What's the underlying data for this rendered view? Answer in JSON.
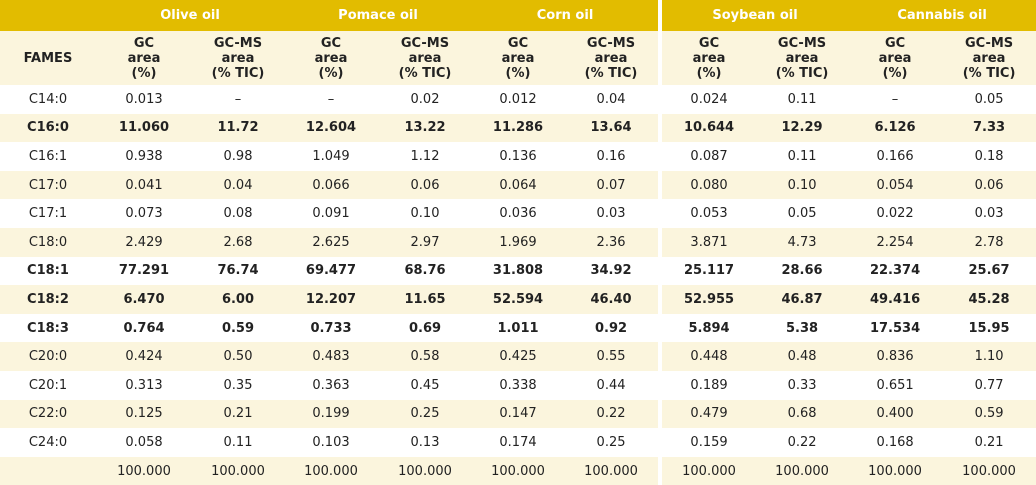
{
  "header": {
    "fames_label": "FAMES",
    "groups": [
      "Olive oil",
      "Pomace oil",
      "Corn oil",
      "Soybean oil",
      "Cannabis oil"
    ],
    "gc_label": [
      "GC",
      "area",
      "(%)"
    ],
    "gcms_label": [
      "GC-MS",
      "area",
      "(% TIC)"
    ]
  },
  "rows": [
    {
      "name": "C14:0",
      "values": [
        "0.013",
        "–",
        "–",
        "0.02",
        "0.012",
        "0.04",
        "0.024",
        "0.11",
        "–",
        "0.05"
      ]
    },
    {
      "name": "C16:0",
      "values": [
        "11.060",
        "11.72",
        "12.604",
        "13.22",
        "11.286",
        "13.64",
        "10.644",
        "12.29",
        "6.126",
        "7.33"
      ]
    },
    {
      "name": "C16:1",
      "values": [
        "0.938",
        "0.98",
        "1.049",
        "1.12",
        "0.136",
        "0.16",
        "0.087",
        "0.11",
        "0.166",
        "0.18"
      ]
    },
    {
      "name": "C17:0",
      "values": [
        "0.041",
        "0.04",
        "0.066",
        "0.06",
        "0.064",
        "0.07",
        "0.080",
        "0.10",
        "0.054",
        "0.06"
      ]
    },
    {
      "name": "C17:1",
      "values": [
        "0.073",
        "0.08",
        "0.091",
        "0.10",
        "0.036",
        "0.03",
        "0.053",
        "0.05",
        "0.022",
        "0.03"
      ]
    },
    {
      "name": "C18:0",
      "values": [
        "2.429",
        "2.68",
        "2.625",
        "2.97",
        "1.969",
        "2.36",
        "3.871",
        "4.73",
        "2.254",
        "2.78"
      ]
    },
    {
      "name": "C18:1",
      "values": [
        "77.291",
        "76.74",
        "69.477",
        "68.76",
        "31.808",
        "34.92",
        "25.117",
        "28.66",
        "22.374",
        "25.67"
      ]
    },
    {
      "name": "C18:2",
      "values": [
        "6.470",
        "6.00",
        "12.207",
        "11.65",
        "52.594",
        "46.40",
        "52.955",
        "46.87",
        "49.416",
        "45.28"
      ]
    },
    {
      "name": "C18:3",
      "values": [
        "0.764",
        "0.59",
        "0.733",
        "0.69",
        "1.011",
        "0.92",
        "5.894",
        "5.38",
        "17.534",
        "15.95"
      ]
    },
    {
      "name": "C20:0",
      "values": [
        "0.424",
        "0.50",
        "0.483",
        "0.58",
        "0.425",
        "0.55",
        "0.448",
        "0.48",
        "0.836",
        "1.10"
      ]
    },
    {
      "name": "C20:1",
      "values": [
        "0.313",
        "0.35",
        "0.363",
        "0.45",
        "0.338",
        "0.44",
        "0.189",
        "0.33",
        "0.651",
        "0.77"
      ]
    },
    {
      "name": "C22:0",
      "values": [
        "0.125",
        "0.21",
        "0.199",
        "0.25",
        "0.147",
        "0.22",
        "0.479",
        "0.68",
        "0.400",
        "0.59"
      ]
    },
    {
      "name": "C24:0",
      "values": [
        "0.058",
        "0.11",
        "0.103",
        "0.13",
        "0.174",
        "0.25",
        "0.159",
        "0.22",
        "0.168",
        "0.21"
      ]
    },
    {
      "name": "",
      "values": [
        "100.000",
        "100.000",
        "100.000",
        "100.000",
        "100.000",
        "100.000",
        "100.000",
        "100.000",
        "100.000",
        "100.000"
      ]
    }
  ]
}
